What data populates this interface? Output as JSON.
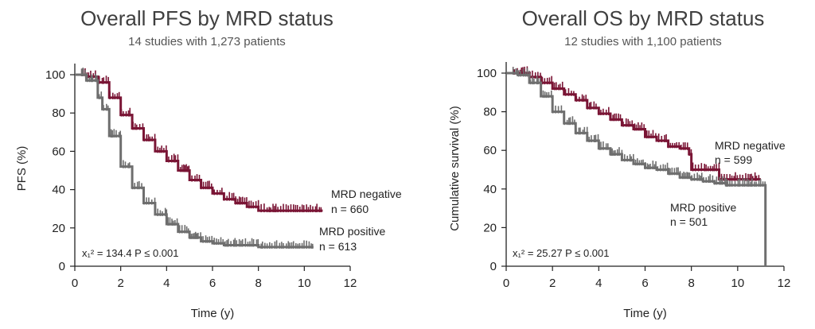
{
  "chart_data": [
    {
      "type": "line",
      "title": "Overall PFS by MRD status",
      "subtitle": "14 studies with 1,273 patients",
      "xlabel": "Time (y)",
      "ylabel": "PFS (%)",
      "xlim": [
        0,
        12
      ],
      "ylim": [
        0,
        100
      ],
      "xticks": [
        "0",
        "2",
        "4",
        "6",
        "8",
        "10",
        "12"
      ],
      "yticks": [
        "0",
        "20",
        "40",
        "60",
        "80",
        "100"
      ],
      "grid": false,
      "statistic": "x₁² = 134.4  P ≤ 0.001",
      "series": [
        {
          "name": "MRD negative",
          "n_label": "n = 660",
          "color": "#7a1535",
          "x": [
            0,
            0.5,
            1,
            1.5,
            2,
            2.5,
            3,
            3.5,
            4,
            4.5,
            5,
            5.5,
            6,
            6.5,
            7,
            7.5,
            8,
            8.5,
            9,
            9.5,
            10,
            10.5,
            10.8
          ],
          "y": [
            100,
            99,
            96,
            88,
            79,
            72,
            66,
            60,
            55,
            50,
            45,
            41,
            38,
            35,
            33,
            31,
            29,
            29,
            29,
            29,
            29,
            29,
            29
          ]
        },
        {
          "name": "MRD positive",
          "n_label": "n = 613",
          "color": "#6e6e6e",
          "x": [
            0,
            0.5,
            1,
            1.2,
            1.5,
            2,
            2.5,
            3,
            3.5,
            4,
            4.5,
            5,
            5.5,
            6,
            6.5,
            7,
            7.5,
            8,
            8.5,
            9,
            9.5,
            10,
            10.4
          ],
          "y": [
            100,
            97,
            88,
            82,
            68,
            52,
            41,
            33,
            27,
            22,
            18,
            15,
            13,
            12,
            11,
            11,
            11,
            10,
            10,
            10,
            10,
            10,
            10
          ]
        }
      ]
    },
    {
      "type": "line",
      "title": "Overall OS by MRD status",
      "subtitle": "12 studies with 1,100 patients",
      "xlabel": "Time (y)",
      "ylabel": "Cumulative survival (%)",
      "xlim": [
        0,
        12
      ],
      "ylim": [
        0,
        100
      ],
      "xticks": [
        "0",
        "2",
        "4",
        "6",
        "8",
        "10",
        "12"
      ],
      "yticks": [
        "0",
        "20",
        "40",
        "60",
        "80",
        "100"
      ],
      "grid": false,
      "statistic": "x₁² = 25.27  P ≤ 0.001",
      "series": [
        {
          "name": "MRD negative",
          "n_label": "n = 599",
          "color": "#7a1535",
          "x": [
            0,
            0.5,
            1,
            1.5,
            2,
            2.5,
            3,
            3.5,
            4,
            4.5,
            5,
            5.5,
            6,
            6.5,
            7,
            7.5,
            7.9,
            8.0,
            8.8,
            9.2,
            10,
            10.5,
            11.0
          ],
          "y": [
            100,
            100,
            98,
            95,
            92,
            89,
            86,
            82,
            79,
            76,
            73,
            71,
            67,
            65,
            62,
            61,
            58,
            50,
            50,
            45,
            45,
            45,
            45
          ]
        },
        {
          "name": "MRD positive",
          "n_label": "n = 501",
          "color": "#6e6e6e",
          "x": [
            0,
            0.5,
            1,
            1.5,
            2,
            2.5,
            3,
            3.5,
            4,
            4.5,
            5,
            5.5,
            6,
            6.5,
            7,
            7.5,
            8,
            8.5,
            9,
            9.5,
            10,
            10.5,
            11,
            11.2,
            11.2
          ],
          "y": [
            100,
            99,
            95,
            88,
            80,
            74,
            69,
            65,
            61,
            58,
            55,
            53,
            51,
            50,
            48,
            46,
            45,
            44,
            43,
            42,
            42,
            42,
            42,
            42,
            0
          ]
        }
      ]
    }
  ]
}
